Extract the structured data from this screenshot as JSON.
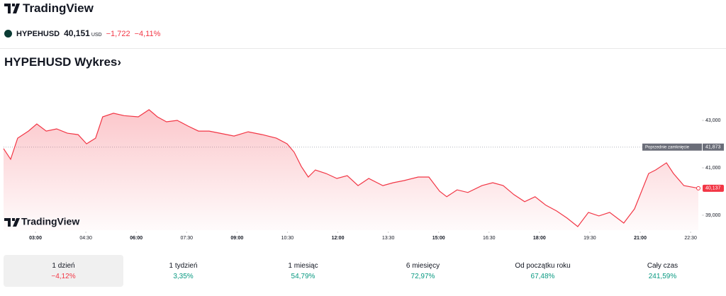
{
  "header": {
    "brand": "TradingView"
  },
  "ticker": {
    "symbol": "HYPEHUSD",
    "price": "40,151",
    "currency": "USD",
    "change": "−1,722",
    "change_percent": "−4,11%"
  },
  "chart_title": "HYPEHUSD Wykres",
  "chart_data": {
    "type": "line",
    "watermark": "TradingView",
    "x": [
      2.05,
      2.26,
      2.47,
      2.79,
      3.04,
      3.32,
      3.63,
      3.95,
      4.27,
      4.52,
      4.79,
      5.0,
      5.32,
      5.64,
      6.06,
      6.38,
      6.63,
      6.9,
      7.22,
      7.54,
      7.85,
      8.17,
      8.49,
      8.91,
      9.33,
      9.75,
      10.17,
      10.49,
      10.7,
      10.91,
      11.12,
      11.33,
      11.65,
      11.97,
      12.28,
      12.6,
      12.92,
      13.34,
      13.65,
      13.97,
      14.39,
      14.71,
      15.03,
      15.24,
      15.55,
      15.87,
      16.29,
      16.61,
      16.92,
      17.24,
      17.56,
      17.87,
      18.19,
      18.51,
      18.82,
      19.14,
      19.46,
      19.77,
      20.09,
      20.51,
      20.83,
      21.04,
      21.25,
      21.46,
      21.78,
      21.99,
      22.3,
      22.73
    ],
    "series": [
      {
        "name": "HYPEHUSD",
        "color": "#f23645",
        "values": [
          41.81,
          41.36,
          42.25,
          42.55,
          42.85,
          42.55,
          42.64,
          42.46,
          42.4,
          42.01,
          42.25,
          43.15,
          43.3,
          43.2,
          43.15,
          43.45,
          43.15,
          42.94,
          43.0,
          42.76,
          42.55,
          42.55,
          42.46,
          42.34,
          42.52,
          42.4,
          42.25,
          42.01,
          41.66,
          41.06,
          40.61,
          40.91,
          40.76,
          40.55,
          40.67,
          40.25,
          40.55,
          40.25,
          40.37,
          40.46,
          40.61,
          40.61,
          40.01,
          39.78,
          40.07,
          39.96,
          40.25,
          40.37,
          40.25,
          39.87,
          39.57,
          39.78,
          39.42,
          39.18,
          38.88,
          38.52,
          39.12,
          38.97,
          39.12,
          38.67,
          39.27,
          40.01,
          40.76,
          40.91,
          41.21,
          40.76,
          40.25,
          40.137
        ]
      }
    ],
    "xlim": [
      2.05,
      22.73
    ],
    "xticks": [
      {
        "value": 3,
        "label": "03:00"
      },
      {
        "value": 4.5,
        "label": "04:30"
      },
      {
        "value": 6,
        "label": "06:00"
      },
      {
        "value": 7.5,
        "label": "07:30"
      },
      {
        "value": 9,
        "label": "09:00"
      },
      {
        "value": 10.5,
        "label": "10:30"
      },
      {
        "value": 12,
        "label": "12:00"
      },
      {
        "value": 13.5,
        "label": "13:30"
      },
      {
        "value": 15,
        "label": "15:00"
      },
      {
        "value": 16.5,
        "label": "16:30"
      },
      {
        "value": 18,
        "label": "18:00"
      },
      {
        "value": 19.5,
        "label": "19:30"
      },
      {
        "value": 21,
        "label": "21:00"
      },
      {
        "value": 22.5,
        "label": "22:30"
      }
    ],
    "ylim": [
      38.37,
      45.24
    ],
    "yticks": [
      {
        "value": 39,
        "label": "39,000"
      },
      {
        "value": 41,
        "label": "41,000"
      },
      {
        "value": 43,
        "label": "43,000"
      }
    ],
    "prev_close": {
      "value": 41.873,
      "label": "41,873",
      "name": "Poprzednie zamknięcie"
    },
    "last_price": {
      "value": 40.137,
      "label": "40,137"
    },
    "grid": false
  },
  "periods": [
    {
      "label": "1 dzień",
      "change": "−4,12%",
      "color": "#f23645",
      "active": true
    },
    {
      "label": "1 tydzień",
      "change": "3,35%",
      "color": "#089981",
      "active": false
    },
    {
      "label": "1 miesiąc",
      "change": "54,79%",
      "color": "#089981",
      "active": false
    },
    {
      "label": "6 miesięcy",
      "change": "72,97%",
      "color": "#089981",
      "active": false
    },
    {
      "label": "Od początku roku",
      "change": "67,48%",
      "color": "#089981",
      "active": false
    },
    {
      "label": "Cały czas",
      "change": "241,59%",
      "color": "#089981",
      "active": false
    }
  ]
}
